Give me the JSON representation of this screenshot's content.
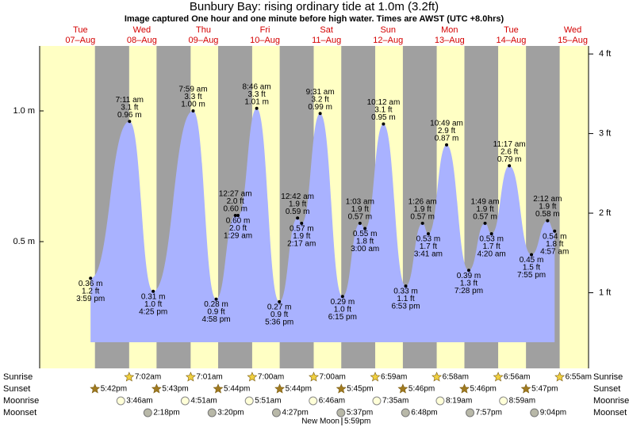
{
  "chart_data": {
    "type": "area",
    "title": "Bunbury Bay: rising  ordinary tide at 1.0m (3.2ft)",
    "subtitle": "Image captured One hour and one minute before high water. Times are AWST (UTC +8.0hrs)",
    "color": "#a9b2ff",
    "day_color": "#ffffc4",
    "night_color": "#a0a0a0",
    "ylim": [
      0,
      1.3
    ],
    "yticks": [
      {
        "value": 0.5,
        "label": "0.5 m"
      },
      {
        "value": 1.0,
        "label": "1.0 m"
      }
    ],
    "y2lim": [
      0,
      4.27
    ],
    "y2ticks": [
      {
        "value": 1,
        "label": "1 ft"
      },
      {
        "value": 2,
        "label": "2 ft"
      },
      {
        "value": 3,
        "label": "3 ft"
      },
      {
        "value": 4,
        "label": "4 ft"
      }
    ],
    "rows": {
      "sunrise": "Sunrise",
      "sunset": "Sunset",
      "moonrise": "Moonrise",
      "moonset": "Moonset"
    },
    "days": [
      {
        "name": "Tue",
        "date": "07–Aug",
        "sunset": "5:42pm",
        "tides": [
          {
            "time": "3:59 pm",
            "ft": "1.2 ft",
            "m": {
              "value": 0.36,
              "label": "0.36 m"
            }
          }
        ]
      },
      {
        "name": "Wed",
        "date": "08–Aug",
        "sunrise": "7:02am",
        "sunset": "5:43pm",
        "moonrise": "3:46am",
        "moonset": "2:18pm",
        "tides": [
          {
            "time": "7:11 am",
            "ft": "3.1 ft",
            "m": {
              "value": 0.96,
              "label": "0.96 m"
            }
          },
          {
            "time": "4:25 pm",
            "ft": "1.0 ft",
            "m": {
              "value": 0.31,
              "label": "0.31 m"
            }
          }
        ]
      },
      {
        "name": "Thu",
        "date": "09–Aug",
        "sunrise": "7:01am",
        "sunset": "5:44pm",
        "moonrise": "4:51am",
        "moonset": "3:20pm",
        "tides": [
          {
            "time": "7:59 am",
            "ft": "3.3 ft",
            "m": {
              "value": 1.0,
              "label": "1.00 m"
            }
          },
          {
            "time": "4:58 pm",
            "ft": "0.9 ft",
            "m": {
              "value": 0.28,
              "label": "0.28 m"
            }
          }
        ]
      },
      {
        "name": "Fri",
        "date": "10–Aug",
        "sunrise": "7:00am",
        "sunset": "5:44pm",
        "moonrise": "5:51am",
        "moonset": "4:27pm",
        "tides": [
          {
            "time": "12:27 am",
            "ft": "2.0 ft",
            "m": {
              "value": 0.6,
              "label": "0.60 m"
            }
          },
          {
            "time": "1:29 am",
            "ft": "2.0 ft",
            "m": {
              "value": 0.6,
              "label": "0.60 m"
            }
          },
          {
            "time": "8:46 am",
            "ft": "3.3 ft",
            "m": {
              "value": 1.01,
              "label": "1.01 m"
            }
          },
          {
            "time": "5:36 pm",
            "ft": "0.9 ft",
            "m": {
              "value": 0.27,
              "label": "0.27 m"
            }
          }
        ]
      },
      {
        "name": "Sat",
        "date": "11–Aug",
        "sunrise": "7:00am",
        "sunset": "5:45pm",
        "moonrise": "6:46am",
        "moonset": "5:37pm",
        "moon_phase": {
          "name": "New Moon",
          "time": "5:59pm"
        },
        "tides": [
          {
            "time": "12:42 am",
            "ft": "1.9 ft",
            "m": {
              "value": 0.59,
              "label": "0.59 m"
            }
          },
          {
            "time": "2:17 am",
            "ft": "1.9 ft",
            "m": {
              "value": 0.57,
              "label": "0.57 m"
            }
          },
          {
            "time": "9:31 am",
            "ft": "3.2 ft",
            "m": {
              "value": 0.99,
              "label": "0.99 m"
            }
          },
          {
            "time": "6:15 pm",
            "ft": "1.0 ft",
            "m": {
              "value": 0.29,
              "label": "0.29 m"
            }
          }
        ]
      },
      {
        "name": "Sun",
        "date": "12–Aug",
        "sunrise": "6:59am",
        "sunset": "5:46pm",
        "moonrise": "7:35am",
        "moonset": "6:48pm",
        "tides": [
          {
            "time": "1:03 am",
            "ft": "1.9 ft",
            "m": {
              "value": 0.57,
              "label": "0.57 m"
            }
          },
          {
            "time": "3:00 am",
            "ft": "1.8 ft",
            "m": {
              "value": 0.55,
              "label": "0.55 m"
            }
          },
          {
            "time": "10:12 am",
            "ft": "3.1 ft",
            "m": {
              "value": 0.95,
              "label": "0.95 m"
            }
          },
          {
            "time": "6:53 pm",
            "ft": "1.1 ft",
            "m": {
              "value": 0.33,
              "label": "0.33 m"
            }
          }
        ]
      },
      {
        "name": "Mon",
        "date": "13–Aug",
        "sunrise": "6:58am",
        "sunset": "5:46pm",
        "moonrise": "8:19am",
        "moonset": "7:57pm",
        "tides": [
          {
            "time": "1:26 am",
            "ft": "1.9 ft",
            "m": {
              "value": 0.57,
              "label": "0.57 m"
            }
          },
          {
            "time": "3:41 am",
            "ft": "1.7 ft",
            "m": {
              "value": 0.53,
              "label": "0.53 m"
            }
          },
          {
            "time": "10:49 am",
            "ft": "2.9 ft",
            "m": {
              "value": 0.87,
              "label": "0.87 m"
            }
          },
          {
            "time": "7:28 pm",
            "ft": "1.3 ft",
            "m": {
              "value": 0.39,
              "label": "0.39 m"
            }
          }
        ]
      },
      {
        "name": "Tue",
        "date": "14–Aug",
        "sunrise": "6:56am",
        "sunset": "5:47pm",
        "moonrise": "8:59am",
        "moonset": "9:04pm",
        "tides": [
          {
            "time": "1:49 am",
            "ft": "1.9 ft",
            "m": {
              "value": 0.57,
              "label": "0.57 m"
            }
          },
          {
            "time": "4:20 am",
            "ft": "1.7 ft",
            "m": {
              "value": 0.53,
              "label": "0.53 m"
            }
          },
          {
            "time": "11:17 am",
            "ft": "2.6 ft",
            "m": {
              "value": 0.79,
              "label": "0.79 m"
            }
          },
          {
            "time": "7:55 pm",
            "ft": "1.5 ft",
            "m": {
              "value": 0.45,
              "label": "0.45 m"
            }
          }
        ]
      },
      {
        "name": "Wed",
        "date": "15–Aug",
        "sunrise": "6:55am",
        "tides": [
          {
            "time": "2:12 am",
            "ft": "1.9 ft",
            "m": {
              "value": 0.58,
              "label": "0.58 m"
            }
          },
          {
            "time": "4:57 am",
            "ft": "1.8 ft",
            "m": {
              "value": 0.54,
              "label": "0.54 m"
            }
          }
        ]
      }
    ]
  }
}
